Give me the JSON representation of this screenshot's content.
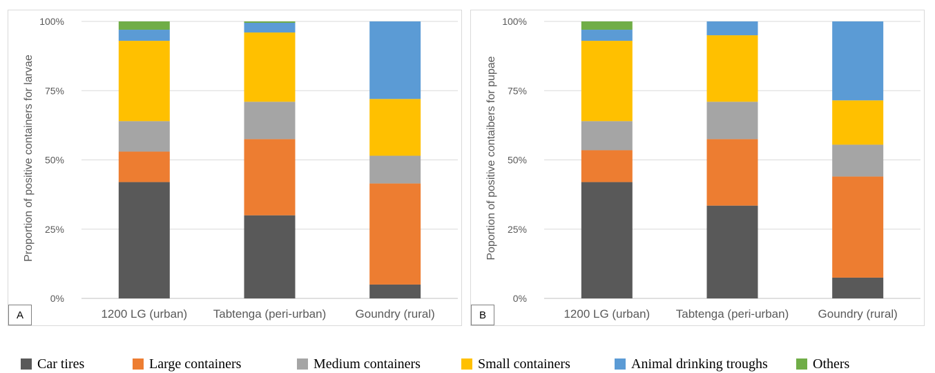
{
  "series_colors": {
    "Car tires": "#595959",
    "Large containers": "#ed7d31",
    "Medium containers": "#a5a5a5",
    "Small containers": "#ffc000",
    "Animal drinking troughs": "#5b9bd5",
    "Others": "#70ad47"
  },
  "legend": {
    "items": [
      {
        "label": "Car tires",
        "color": "#595959"
      },
      {
        "label": "Large containers",
        "color": "#ed7d31"
      },
      {
        "label": "Medium containers",
        "color": "#a5a5a5"
      },
      {
        "label": "Small containers",
        "color": "#ffc000"
      },
      {
        "label": "Animal drinking troughs",
        "color": "#5b9bd5"
      },
      {
        "label": "Others",
        "color": "#70ad47"
      }
    ]
  },
  "chart_data": [
    {
      "type": "bar",
      "stacked": true,
      "panel_label": "A",
      "ylabel": "Proportion of positive containers for larvae",
      "xlabel": "",
      "categories": [
        "1200 LG (urban)",
        "Tabtenga (peri-urban)",
        "Goundry (rural)"
      ],
      "ylim": [
        0,
        100
      ],
      "yticks": [
        "0%",
        "25%",
        "50%",
        "75%",
        "100%"
      ],
      "grid": true,
      "series": [
        {
          "name": "Car tires",
          "values": [
            42,
            30,
            5
          ]
        },
        {
          "name": "Large containers",
          "values": [
            11,
            27.5,
            36.5
          ]
        },
        {
          "name": "Medium containers",
          "values": [
            11,
            13.5,
            10
          ]
        },
        {
          "name": "Small containers",
          "values": [
            29,
            25,
            20.5
          ]
        },
        {
          "name": "Animal drinking troughs",
          "values": [
            4,
            3.5,
            28
          ]
        },
        {
          "name": "Others",
          "values": [
            3,
            0.5,
            0
          ]
        }
      ]
    },
    {
      "type": "bar",
      "stacked": true,
      "panel_label": "B",
      "ylabel": "Poportion of positive contaibers for pupae",
      "xlabel": "",
      "categories": [
        "1200 LG (urban)",
        "Tabtenga (peri-urban)",
        "Goundry (rural)"
      ],
      "ylim": [
        0,
        100
      ],
      "yticks": [
        "0%",
        "25%",
        "50%",
        "75%",
        "100%"
      ],
      "grid": true,
      "series": [
        {
          "name": "Car tires",
          "values": [
            42,
            33.5,
            7.5
          ]
        },
        {
          "name": "Large containers",
          "values": [
            11.5,
            24,
            36.5
          ]
        },
        {
          "name": "Medium containers",
          "values": [
            10.5,
            13.5,
            11.5
          ]
        },
        {
          "name": "Small containers",
          "values": [
            29,
            24,
            16
          ]
        },
        {
          "name": "Animal drinking troughs",
          "values": [
            4,
            5,
            28.5
          ]
        },
        {
          "name": "Others",
          "values": [
            3,
            0,
            0
          ]
        }
      ]
    }
  ]
}
